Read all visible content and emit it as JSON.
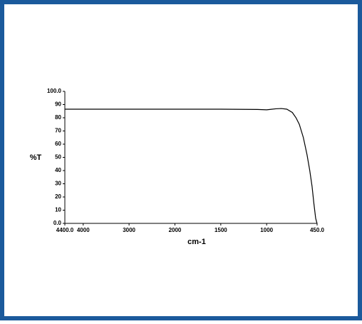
{
  "chart_data": {
    "type": "line",
    "xlabel": "cm-1",
    "ylabel": "%T",
    "x": [
      4400,
      3000,
      2000,
      1500,
      1100,
      1000,
      900,
      840,
      780,
      720,
      680,
      644,
      600,
      560,
      530,
      505,
      485,
      466,
      455,
      450
    ],
    "values": [
      86.5,
      86.5,
      86.5,
      86.5,
      86.3,
      86,
      86.8,
      87,
      86.5,
      84,
      80,
      75,
      65,
      52,
      40,
      28,
      15,
      4,
      1,
      0
    ],
    "color": "#000000",
    "xlim": [
      4400,
      450
    ],
    "x_scale_change_at": 2000,
    "xticks": [
      {
        "value": 4400,
        "label": "4400.0"
      },
      4000,
      3000,
      2000,
      1500,
      1000,
      {
        "value": 450,
        "label": "450.0"
      }
    ],
    "ylim": [
      0,
      100
    ],
    "yticks": [
      {
        "value": 0,
        "label": "0.0"
      },
      10,
      20,
      30,
      40,
      50,
      60,
      70,
      80,
      90,
      {
        "value": 100,
        "label": "100.0"
      }
    ],
    "grid": false
  }
}
